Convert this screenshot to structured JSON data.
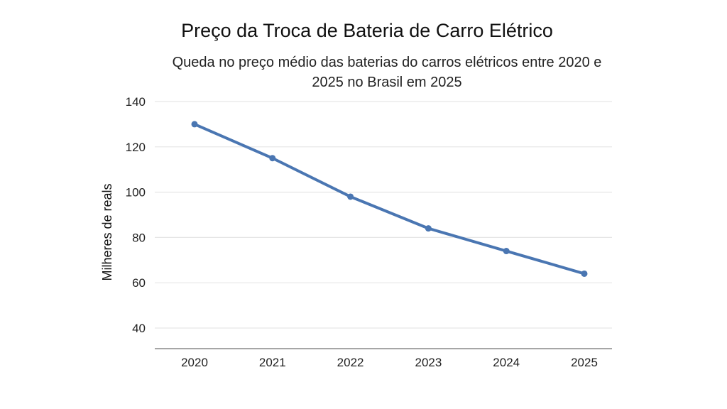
{
  "chart_data": {
    "type": "line",
    "title": "Preço da Troca de Bateria de Carro Elétrico",
    "subtitle": "Queda no preço médio das baterias do carros elétricos entre 2020 e 2025 no Brasil em 2025",
    "xlabel": "",
    "ylabel": "Milheres de reals",
    "categories": [
      "2020",
      "2021",
      "2022",
      "2023",
      "2024",
      "2025"
    ],
    "series": [
      {
        "values": [
          130,
          115,
          98,
          84,
          74,
          64
        ],
        "color": "#4a76b2"
      }
    ],
    "yticks": [
      40,
      60,
      80,
      100,
      120,
      140
    ],
    "ylim": [
      31,
      140
    ],
    "grid": true,
    "legend": "none"
  }
}
